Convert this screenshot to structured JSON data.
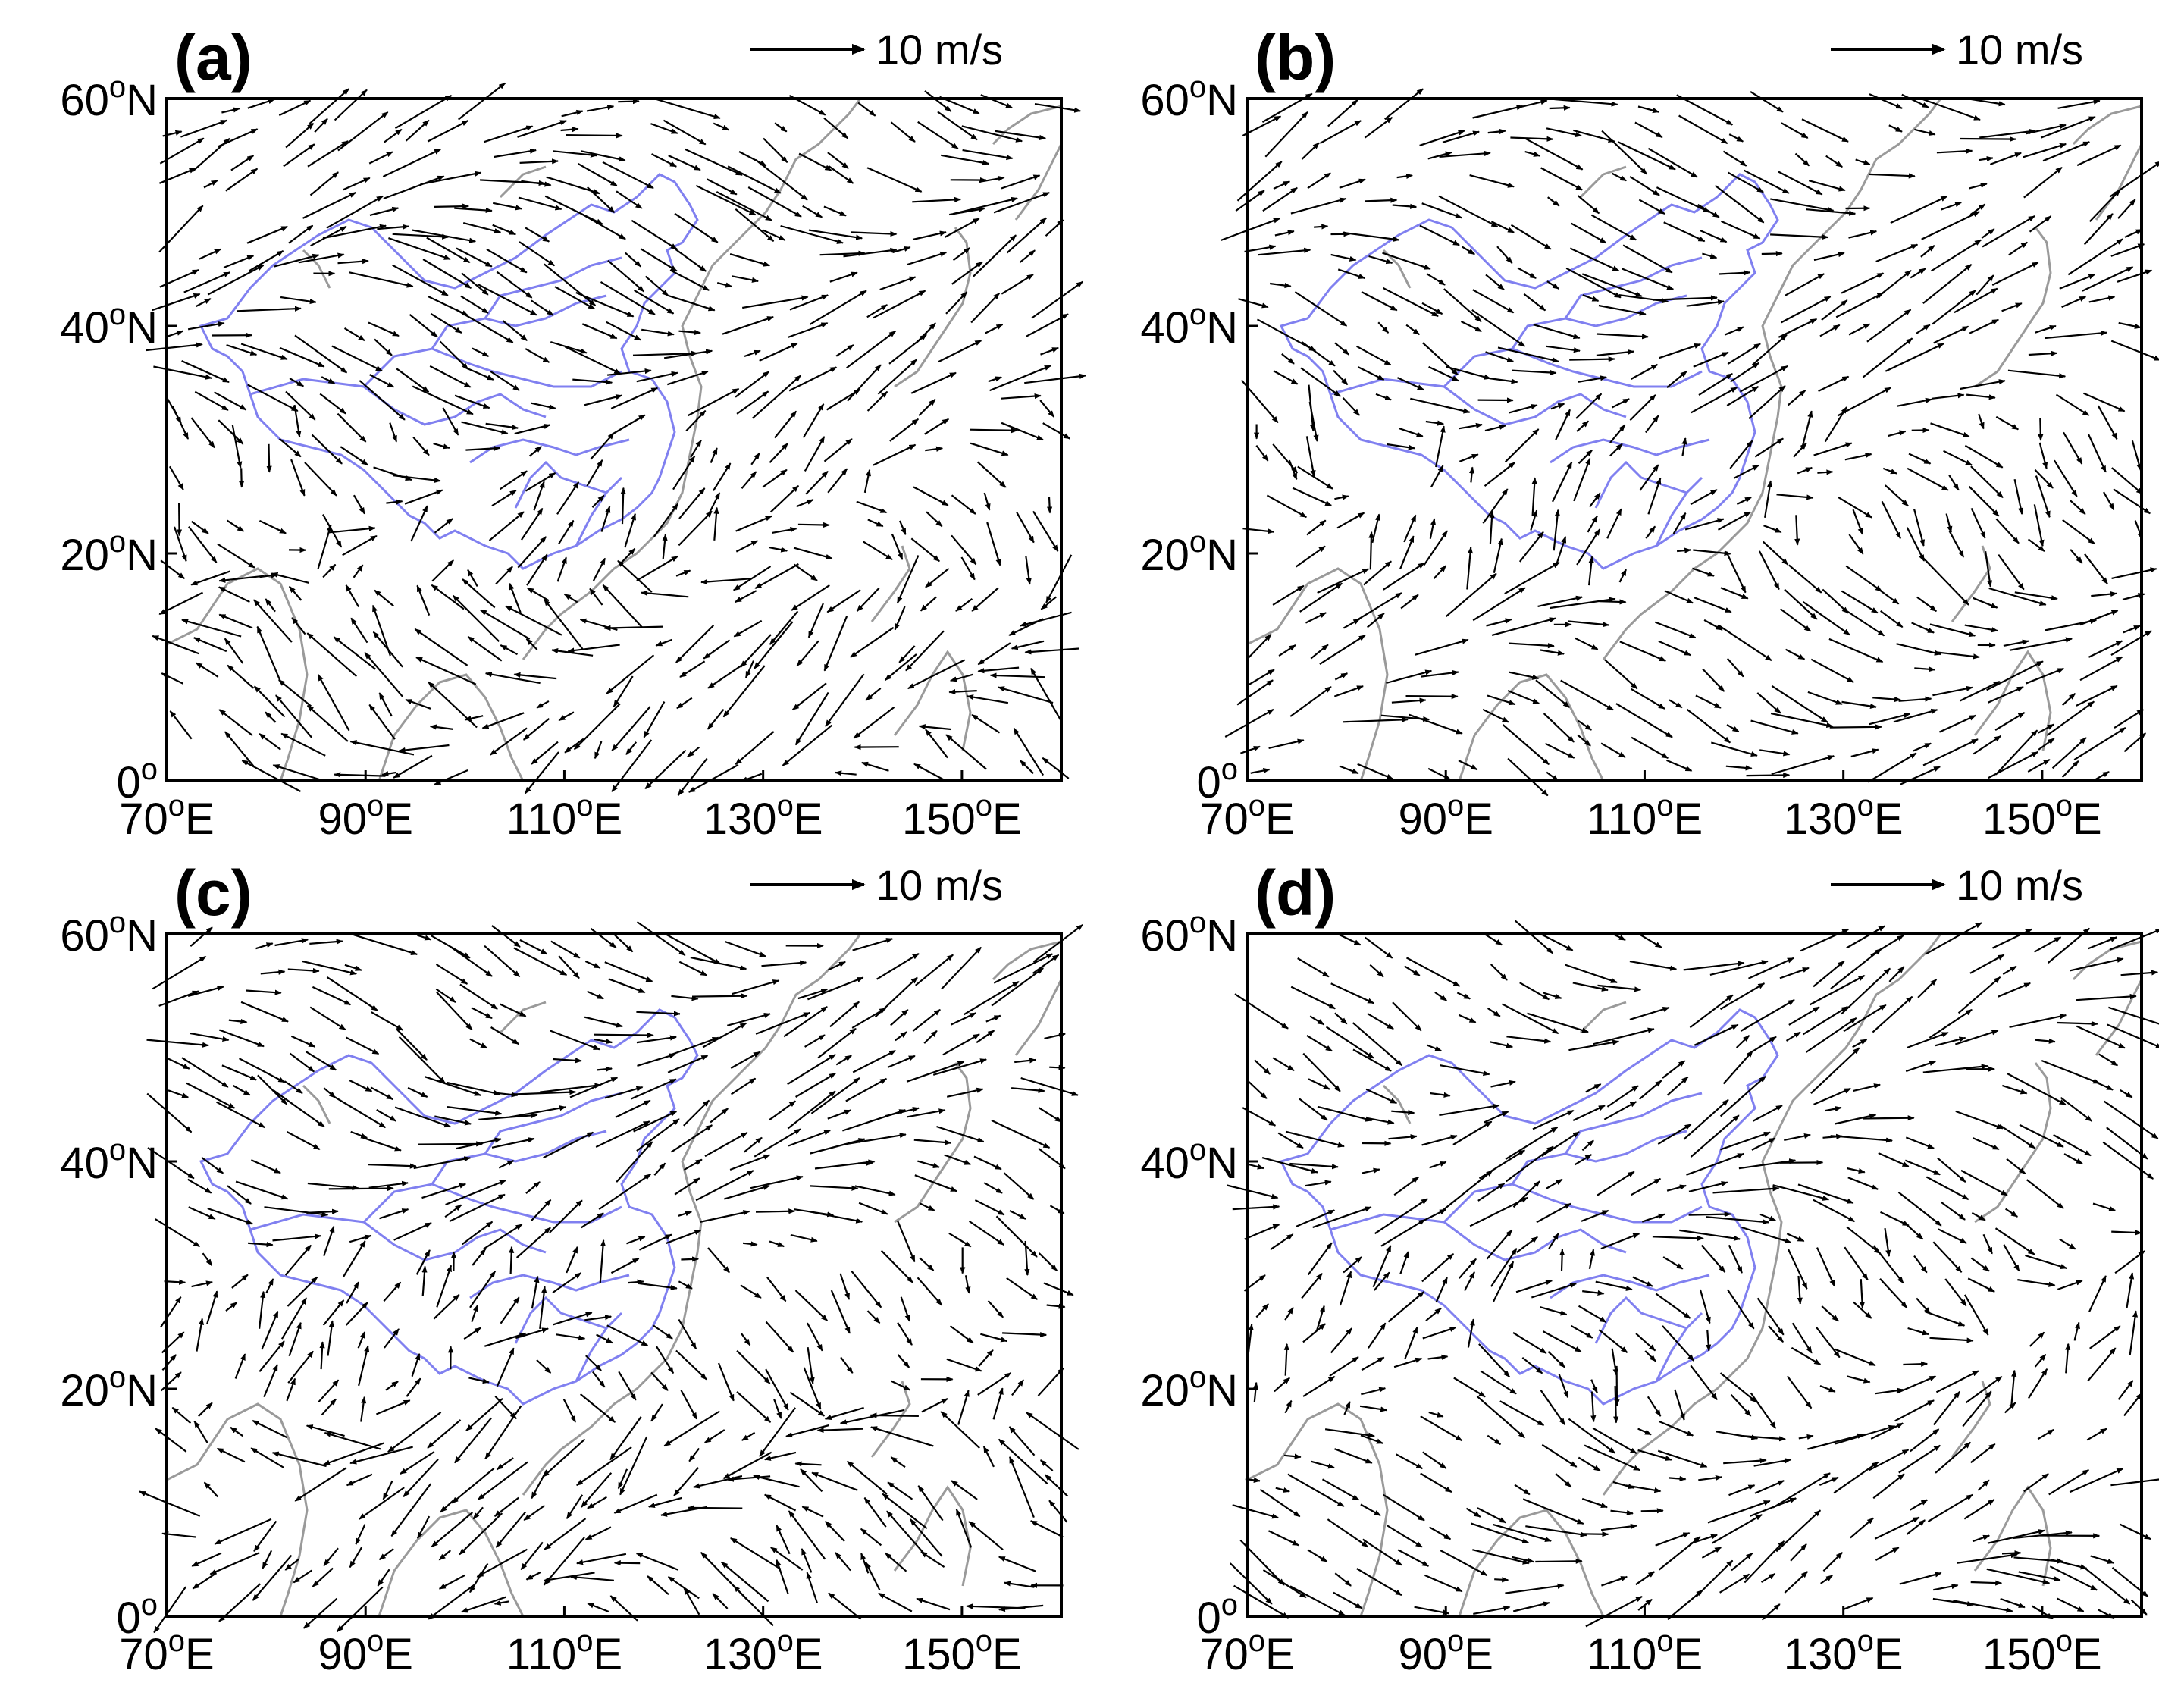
{
  "figure": {
    "panels": [
      {
        "label": "(a)",
        "reference_vector": "10 m/s",
        "seed": 11
      },
      {
        "label": "(b)",
        "reference_vector": "10 m/s",
        "seed": 23
      },
      {
        "label": "(c)",
        "reference_vector": "10 m/s",
        "seed": 37
      },
      {
        "label": "(d)",
        "reference_vector": "10 m/s",
        "seed": 53
      }
    ],
    "x_ticks": [
      {
        "value": 70,
        "text": "70",
        "sup": "o",
        "suffix": "E"
      },
      {
        "value": 90,
        "text": "90",
        "sup": "o",
        "suffix": "E"
      },
      {
        "value": 110,
        "text": "110",
        "sup": "o",
        "suffix": "E"
      },
      {
        "value": 130,
        "text": "130",
        "sup": "o",
        "suffix": "E"
      },
      {
        "value": 150,
        "text": "150",
        "sup": "o",
        "suffix": "E"
      }
    ],
    "y_ticks": [
      {
        "value": 0,
        "text": "0",
        "sup": "o",
        "suffix": ""
      },
      {
        "value": 20,
        "text": "20",
        "sup": "o",
        "suffix": "N"
      },
      {
        "value": 40,
        "text": "40",
        "sup": "o",
        "suffix": "N"
      },
      {
        "value": 60,
        "text": "60",
        "sup": "o",
        "suffix": "N"
      }
    ],
    "lon_range": [
      70,
      160
    ],
    "lat_range": [
      0,
      60
    ],
    "colors": {
      "vector": "#000000",
      "coastline": "#9a9a9a",
      "china_boundary": "#8080f0",
      "frame": "#000000"
    }
  }
}
